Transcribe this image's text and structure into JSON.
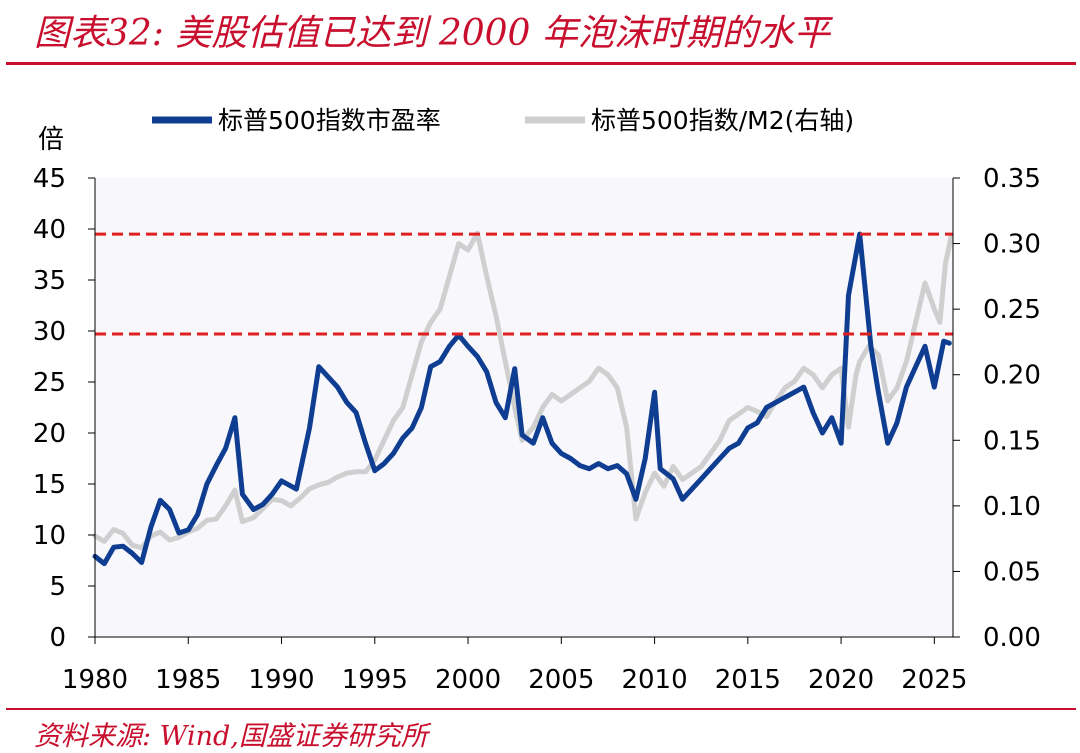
{
  "figure": {
    "title": "图表32:  美股估值已达到 2000 年泡沫时期的水平",
    "source": "资料来源:  Wind,国盛证券研究所"
  },
  "colors": {
    "title": "#c8102e",
    "pe_series": "#0f3d91",
    "m2_series": "#cfcfcf",
    "reference_lines": "#e02020",
    "plot_bg": "#f8f8fc"
  },
  "chart_data": {
    "type": "line",
    "ylabel_left": "倍",
    "x_ticks": [
      "1980",
      "1985",
      "1990",
      "1995",
      "2000",
      "2005",
      "2010",
      "2015",
      "2020",
      "2025"
    ],
    "y_ticks_left": [
      "0",
      "5",
      "10",
      "15",
      "20",
      "25",
      "30",
      "35",
      "40",
      "45"
    ],
    "y_ticks_right": [
      "0.00",
      "0.05",
      "0.10",
      "0.15",
      "0.20",
      "0.25",
      "0.30",
      "0.35"
    ],
    "xlim": [
      1980,
      2026
    ],
    "ylim_left": [
      0,
      45
    ],
    "ylim_right": [
      0,
      0.35
    ],
    "legend_position": "top",
    "grid": false,
    "reference_lines_left": [
      39.5,
      29.7
    ],
    "series": [
      {
        "name": "标普500指数市盈率",
        "axis": "left",
        "points": [
          [
            1980.0,
            7.9
          ],
          [
            1980.5,
            7.2
          ],
          [
            1981.0,
            8.8
          ],
          [
            1981.5,
            8.9
          ],
          [
            1982.0,
            8.2
          ],
          [
            1982.5,
            7.3
          ],
          [
            1983.0,
            10.8
          ],
          [
            1983.5,
            13.4
          ],
          [
            1984.0,
            12.5
          ],
          [
            1984.5,
            10.2
          ],
          [
            1985.0,
            10.5
          ],
          [
            1985.5,
            12.0
          ],
          [
            1986.0,
            15.0
          ],
          [
            1986.5,
            16.8
          ],
          [
            1987.0,
            18.5
          ],
          [
            1987.5,
            21.5
          ],
          [
            1987.9,
            14.0
          ],
          [
            1988.5,
            12.5
          ],
          [
            1989.0,
            13.0
          ],
          [
            1989.5,
            14.0
          ],
          [
            1990.0,
            15.3
          ],
          [
            1990.8,
            14.5
          ],
          [
            1991.5,
            20.5
          ],
          [
            1992.0,
            26.5
          ],
          [
            1992.5,
            25.5
          ],
          [
            1993.0,
            24.5
          ],
          [
            1993.5,
            23.0
          ],
          [
            1994.0,
            22.0
          ],
          [
            1994.5,
            19.0
          ],
          [
            1995.0,
            16.3
          ],
          [
            1995.5,
            17.0
          ],
          [
            1996.0,
            18.0
          ],
          [
            1996.5,
            19.5
          ],
          [
            1997.0,
            20.5
          ],
          [
            1997.5,
            22.5
          ],
          [
            1998.0,
            26.5
          ],
          [
            1998.5,
            27.0
          ],
          [
            1999.0,
            28.5
          ],
          [
            1999.5,
            29.6
          ],
          [
            2000.0,
            28.5
          ],
          [
            2000.5,
            27.5
          ],
          [
            2001.0,
            26.0
          ],
          [
            2001.5,
            23.0
          ],
          [
            2002.0,
            21.5
          ],
          [
            2002.5,
            26.3
          ],
          [
            2002.9,
            19.8
          ],
          [
            2003.5,
            19.0
          ],
          [
            2004.0,
            21.5
          ],
          [
            2004.5,
            19.0
          ],
          [
            2005.0,
            18.0
          ],
          [
            2005.5,
            17.5
          ],
          [
            2006.0,
            16.8
          ],
          [
            2006.5,
            16.5
          ],
          [
            2007.0,
            17.0
          ],
          [
            2007.5,
            16.5
          ],
          [
            2008.0,
            16.8
          ],
          [
            2008.5,
            16.0
          ],
          [
            2009.0,
            13.5
          ],
          [
            2009.5,
            17.5
          ],
          [
            2010.0,
            24.0
          ],
          [
            2010.3,
            16.5
          ],
          [
            2011.0,
            15.5
          ],
          [
            2011.5,
            13.5
          ],
          [
            2012.0,
            14.5
          ],
          [
            2012.5,
            15.5
          ],
          [
            2013.0,
            16.5
          ],
          [
            2013.5,
            17.5
          ],
          [
            2014.0,
            18.5
          ],
          [
            2014.5,
            19.0
          ],
          [
            2015.0,
            20.5
          ],
          [
            2015.5,
            21.0
          ],
          [
            2016.0,
            22.5
          ],
          [
            2016.5,
            23.0
          ],
          [
            2017.0,
            23.5
          ],
          [
            2017.5,
            24.0
          ],
          [
            2018.0,
            24.5
          ],
          [
            2018.5,
            22.0
          ],
          [
            2019.0,
            20.0
          ],
          [
            2019.5,
            21.5
          ],
          [
            2020.0,
            19.0
          ],
          [
            2020.4,
            33.5
          ],
          [
            2021.0,
            39.5
          ],
          [
            2021.3,
            34.0
          ],
          [
            2021.6,
            28.5
          ],
          [
            2022.0,
            24.0
          ],
          [
            2022.5,
            19.0
          ],
          [
            2023.0,
            21.0
          ],
          [
            2023.5,
            24.5
          ],
          [
            2024.0,
            26.5
          ],
          [
            2024.5,
            28.5
          ],
          [
            2025.0,
            24.5
          ],
          [
            2025.5,
            29.0
          ],
          [
            2025.8,
            28.8
          ]
        ]
      },
      {
        "name": "标普500指数/M2(右轴)",
        "axis": "right",
        "points": [
          [
            1980.0,
            0.077
          ],
          [
            1980.5,
            0.073
          ],
          [
            1981.0,
            0.082
          ],
          [
            1981.5,
            0.079
          ],
          [
            1982.0,
            0.07
          ],
          [
            1982.5,
            0.068
          ],
          [
            1983.0,
            0.077
          ],
          [
            1983.5,
            0.08
          ],
          [
            1984.0,
            0.074
          ],
          [
            1984.5,
            0.076
          ],
          [
            1985.0,
            0.08
          ],
          [
            1985.5,
            0.083
          ],
          [
            1986.0,
            0.089
          ],
          [
            1986.5,
            0.09
          ],
          [
            1987.0,
            0.1
          ],
          [
            1987.5,
            0.112
          ],
          [
            1987.9,
            0.088
          ],
          [
            1988.5,
            0.091
          ],
          [
            1989.0,
            0.098
          ],
          [
            1989.5,
            0.105
          ],
          [
            1990.0,
            0.104
          ],
          [
            1990.5,
            0.1
          ],
          [
            1991.0,
            0.106
          ],
          [
            1991.5,
            0.113
          ],
          [
            1992.0,
            0.116
          ],
          [
            1992.5,
            0.118
          ],
          [
            1993.0,
            0.122
          ],
          [
            1993.5,
            0.125
          ],
          [
            1994.0,
            0.126
          ],
          [
            1994.5,
            0.126
          ],
          [
            1995.0,
            0.135
          ],
          [
            1995.5,
            0.15
          ],
          [
            1996.0,
            0.165
          ],
          [
            1996.5,
            0.175
          ],
          [
            1997.0,
            0.2
          ],
          [
            1997.5,
            0.225
          ],
          [
            1998.0,
            0.24
          ],
          [
            1998.5,
            0.25
          ],
          [
            1999.0,
            0.275
          ],
          [
            1999.5,
            0.3
          ],
          [
            2000.0,
            0.295
          ],
          [
            2000.5,
            0.308
          ],
          [
            2001.0,
            0.275
          ],
          [
            2001.5,
            0.245
          ],
          [
            2002.0,
            0.21
          ],
          [
            2002.5,
            0.175
          ],
          [
            2002.9,
            0.15
          ],
          [
            2003.5,
            0.16
          ],
          [
            2004.0,
            0.175
          ],
          [
            2004.5,
            0.185
          ],
          [
            2005.0,
            0.18
          ],
          [
            2005.5,
            0.185
          ],
          [
            2006.0,
            0.19
          ],
          [
            2006.5,
            0.195
          ],
          [
            2007.0,
            0.205
          ],
          [
            2007.5,
            0.2
          ],
          [
            2008.0,
            0.19
          ],
          [
            2008.5,
            0.16
          ],
          [
            2009.0,
            0.09
          ],
          [
            2009.5,
            0.11
          ],
          [
            2010.0,
            0.125
          ],
          [
            2010.5,
            0.115
          ],
          [
            2011.0,
            0.13
          ],
          [
            2011.5,
            0.12
          ],
          [
            2012.0,
            0.125
          ],
          [
            2012.5,
            0.13
          ],
          [
            2013.0,
            0.14
          ],
          [
            2013.5,
            0.15
          ],
          [
            2014.0,
            0.165
          ],
          [
            2014.5,
            0.17
          ],
          [
            2015.0,
            0.175
          ],
          [
            2015.5,
            0.172
          ],
          [
            2016.0,
            0.168
          ],
          [
            2016.5,
            0.18
          ],
          [
            2017.0,
            0.19
          ],
          [
            2017.5,
            0.195
          ],
          [
            2018.0,
            0.205
          ],
          [
            2018.5,
            0.2
          ],
          [
            2019.0,
            0.19
          ],
          [
            2019.5,
            0.2
          ],
          [
            2020.0,
            0.205
          ],
          [
            2020.4,
            0.16
          ],
          [
            2020.8,
            0.2
          ],
          [
            2021.0,
            0.21
          ],
          [
            2021.5,
            0.222
          ],
          [
            2022.0,
            0.215
          ],
          [
            2022.5,
            0.18
          ],
          [
            2023.0,
            0.19
          ],
          [
            2023.5,
            0.21
          ],
          [
            2024.0,
            0.24
          ],
          [
            2024.5,
            0.27
          ],
          [
            2025.0,
            0.25
          ],
          [
            2025.3,
            0.24
          ],
          [
            2025.6,
            0.285
          ],
          [
            2025.9,
            0.305
          ]
        ]
      }
    ]
  }
}
